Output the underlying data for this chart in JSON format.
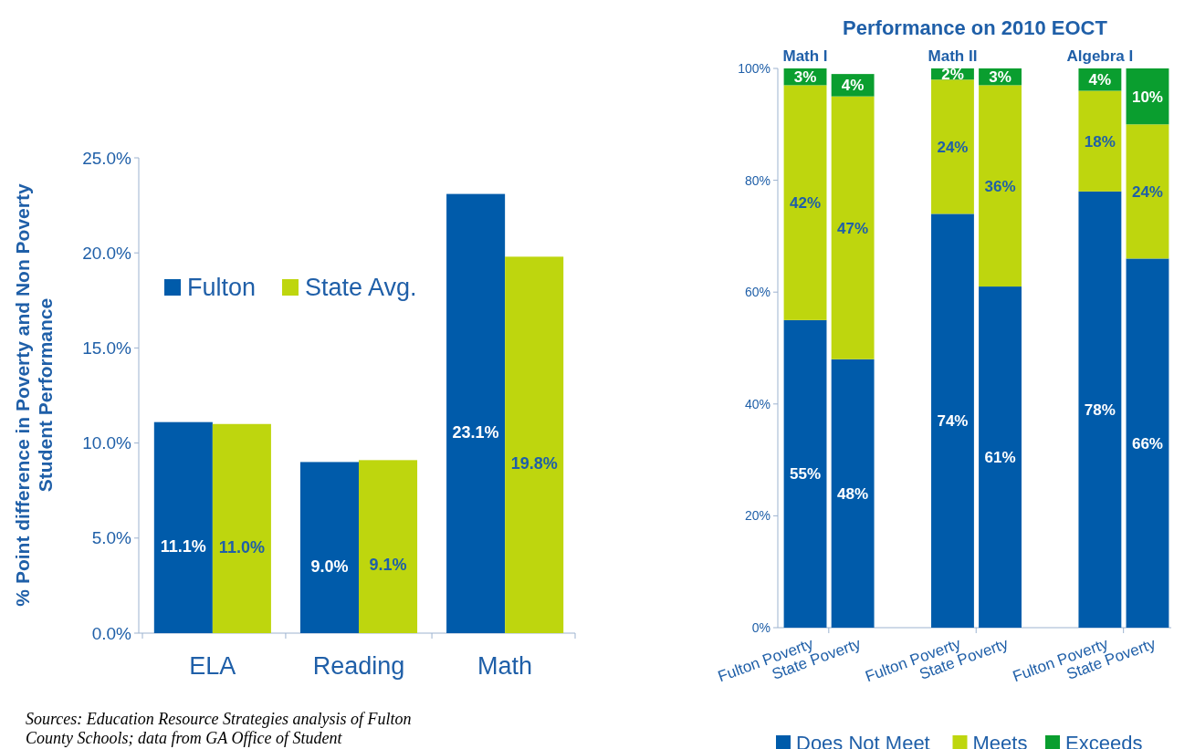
{
  "chart_data": [
    {
      "type": "bar",
      "ylabel": "% Point difference in Poverty and Non Poverty Student Performance",
      "categories": [
        "ELA",
        "Reading",
        "Math"
      ],
      "series": [
        {
          "name": "Fulton",
          "color": "#005baa",
          "values": [
            11.1,
            9.0,
            23.1
          ],
          "value_labels": [
            "11.1%",
            "9.0%",
            "23.1%"
          ]
        },
        {
          "name": "State Avg.",
          "color": "#bed60e",
          "values": [
            11.0,
            9.1,
            19.8
          ],
          "value_labels": [
            "11.0%",
            "9.1%",
            "19.8%"
          ]
        }
      ],
      "ylim": [
        0,
        25
      ],
      "yticks": [
        {
          "value": 0,
          "label": "0.0%"
        },
        {
          "value": 5,
          "label": "5.0%"
        },
        {
          "value": 10,
          "label": "10.0%"
        },
        {
          "value": 15,
          "label": "15.0%"
        },
        {
          "value": 20,
          "label": "20.0%"
        },
        {
          "value": 25,
          "label": "25.0%"
        }
      ],
      "legend": "top left",
      "grid": false,
      "annotations": [
        "Sources: Education Resource Strategies analysis of Fulton County Schools; data from GA Office of Student"
      ]
    },
    {
      "type": "bar",
      "stacked": true,
      "title": "Performance on 2010 EOCT",
      "categories": [
        "Fulton Poverty",
        "State Poverty",
        "Fulton Poverty",
        "State Poverty",
        "Fulton Poverty",
        "State Poverty"
      ],
      "series": [
        {
          "name": "Does Not Meet",
          "color": "#005baa",
          "values": [
            55,
            48,
            74,
            61,
            78,
            66
          ],
          "value_labels": [
            "55%",
            "48%",
            "74%",
            "61%",
            "78%",
            "66%"
          ]
        },
        {
          "name": "Meets",
          "color": "#bed60e",
          "values": [
            42,
            47,
            24,
            36,
            18,
            24
          ],
          "value_labels": [
            "42%",
            "47%",
            "24%",
            "36%",
            "18%",
            "24%"
          ]
        },
        {
          "name": "Exceeds",
          "color": "#0a9e2f",
          "values": [
            3,
            4,
            2,
            3,
            4,
            10
          ],
          "value_labels": [
            "3%",
            "4%",
            "2%",
            "3%",
            "4%",
            "10%"
          ]
        }
      ],
      "ylim": [
        0,
        100
      ],
      "yticks": [
        {
          "value": 0,
          "label": "0%"
        },
        {
          "value": 20,
          "label": "20%"
        },
        {
          "value": 40,
          "label": "40%"
        },
        {
          "value": 60,
          "label": "60%"
        },
        {
          "value": 80,
          "label": "80%"
        },
        {
          "value": 100,
          "label": "100%"
        }
      ],
      "legend": "bottom",
      "grid": false,
      "annotations": [
        "Math I",
        "Math II",
        "Algebra I"
      ]
    }
  ]
}
